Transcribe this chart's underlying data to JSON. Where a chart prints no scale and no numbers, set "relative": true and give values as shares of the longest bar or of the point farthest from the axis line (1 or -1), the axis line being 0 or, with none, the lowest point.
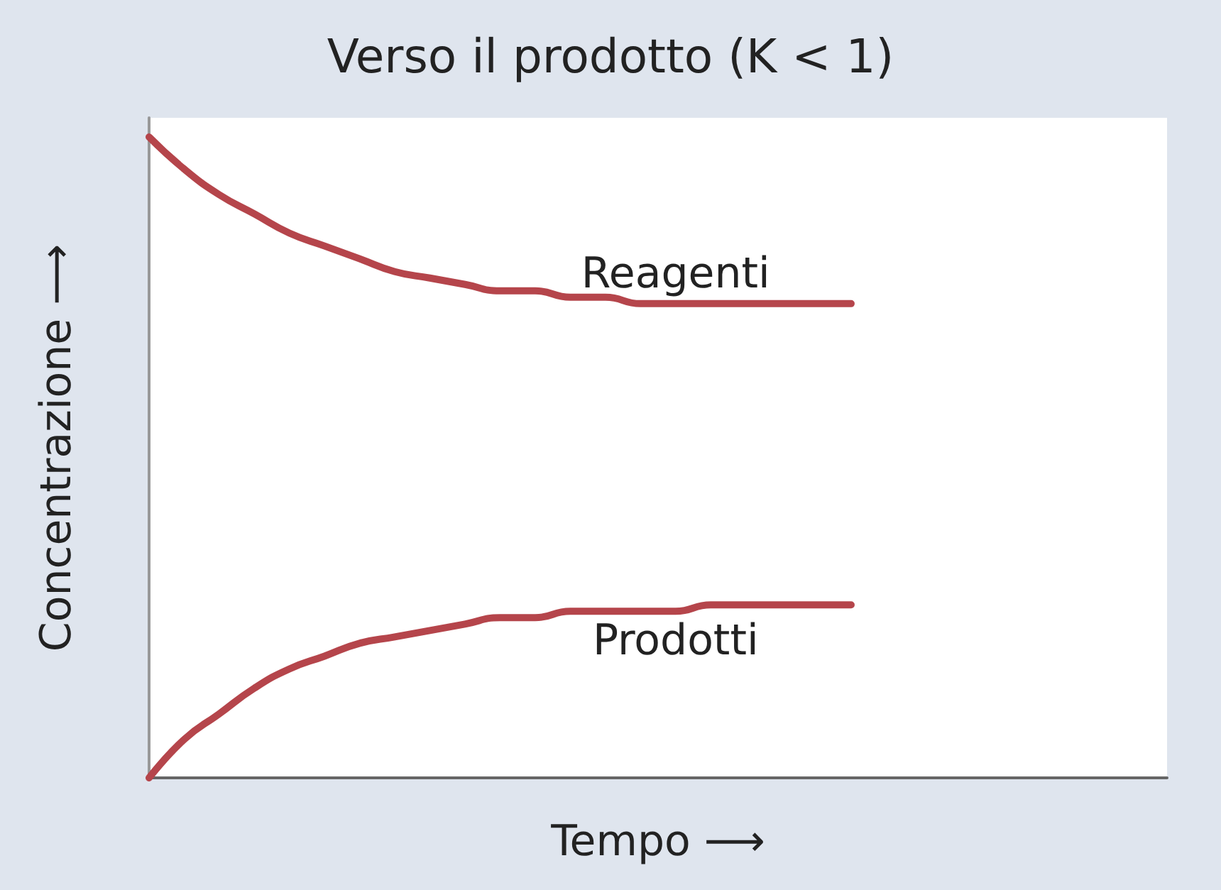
{
  "chart_data": {
    "type": "line",
    "title": "Verso il prodotto (K < 1)",
    "xlabel": "Tempo ⟶",
    "ylabel": "Concentrazione ⟶",
    "relative": true,
    "categories": [
      null,
      null,
      null,
      null,
      null,
      null,
      null,
      null,
      null,
      null,
      null,
      null,
      null,
      null,
      null,
      null,
      null,
      null,
      null,
      null,
      null,
      null,
      null,
      null,
      null,
      null,
      null,
      null,
      null,
      null
    ],
    "series": [
      {
        "name": "Reagenti",
        "color": "#b5454b",
        "values": [
          1.0,
          0.95,
          0.91,
          0.88,
          0.85,
          0.83,
          0.81,
          0.79,
          0.78,
          0.77,
          0.76,
          0.76,
          0.75,
          0.75,
          0.74,
          0.74,
          0.74,
          0.74,
          0.74,
          0.74,
          0.74,
          null,
          null,
          null,
          null,
          null,
          null,
          null,
          null,
          null
        ]
      },
      {
        "name": "Prodotti",
        "color": "#b5454b",
        "values": [
          0,
          0.06,
          0.1,
          0.14,
          0.17,
          0.19,
          0.21,
          0.22,
          0.23,
          0.24,
          0.25,
          0.25,
          0.26,
          0.26,
          0.26,
          0.26,
          0.27,
          0.27,
          0.27,
          0.27,
          0.27,
          null,
          null,
          null,
          null,
          null,
          null,
          null,
          null,
          null
        ]
      }
    ]
  }
}
